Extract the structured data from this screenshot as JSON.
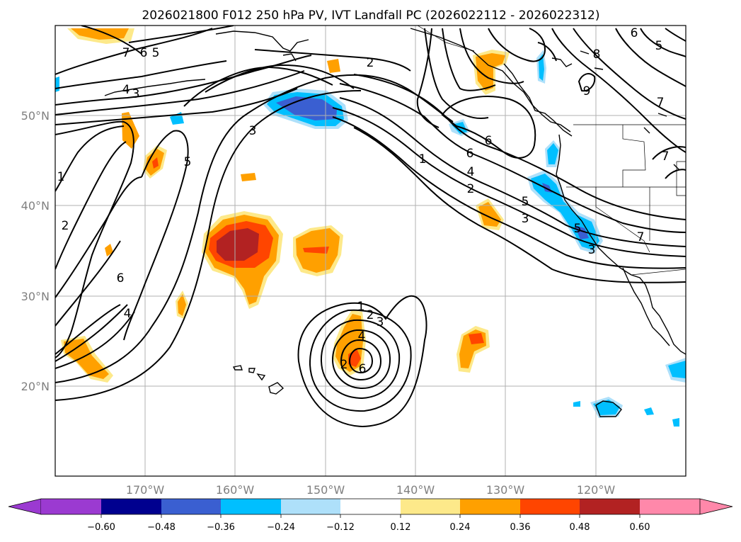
{
  "title": "2026021800 F012 250 hPa PV, IVT Landfall PC (2026022112 - 2026022312)",
  "map": {
    "lon_range": [
      -180,
      -110
    ],
    "lat_range": [
      10,
      60
    ],
    "lon_ticks": [
      {
        "value": -170,
        "label": "170°W"
      },
      {
        "value": -160,
        "label": "160°W"
      },
      {
        "value": -150,
        "label": "150°W"
      },
      {
        "value": -140,
        "label": "140°W"
      },
      {
        "value": -130,
        "label": "130°W"
      },
      {
        "value": -120,
        "label": "120°W"
      }
    ],
    "lat_ticks": [
      {
        "value": 20,
        "label": "20°N"
      },
      {
        "value": 30,
        "label": "30°N"
      },
      {
        "value": 40,
        "label": "40°N"
      },
      {
        "value": 50,
        "label": "50°N"
      }
    ],
    "grid": true
  },
  "colorbar": {
    "extend": "both",
    "colors": [
      "#9b3ad1",
      "#00008f",
      "#3a5fd1",
      "#00bfff",
      "#aee0fa",
      "#ffffff",
      "#fde98a",
      "#ffa000",
      "#ff4500",
      "#b22222",
      "#ff88aa"
    ],
    "ticks": [
      "−0.60",
      "−0.48",
      "−0.36",
      "−0.24",
      "−0.12",
      "0.12",
      "0.24",
      "0.36",
      "0.48",
      "0.60"
    ]
  },
  "contour_labels": [
    "7",
    "6",
    "5",
    "3",
    "2",
    "1",
    "4",
    "5",
    "3",
    "2",
    "6",
    "4",
    "1",
    "2",
    "6",
    "4",
    "5",
    "3",
    "7",
    "9",
    "8",
    "6",
    "5",
    "6",
    "7",
    "7",
    "5",
    "3",
    "1",
    "2",
    "3",
    "4",
    "2",
    "6"
  ]
}
